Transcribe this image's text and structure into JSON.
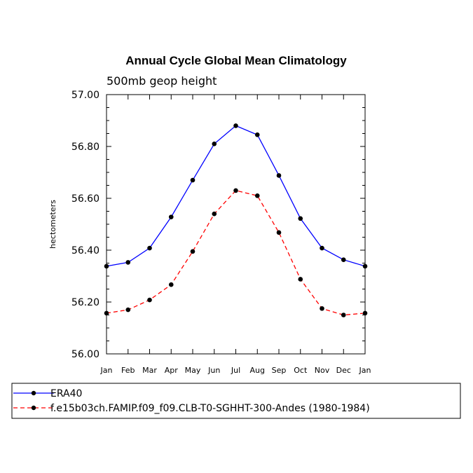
{
  "chart_data": {
    "type": "line",
    "title": "Annual Cycle Global Mean Climatology",
    "subtitle": "500mb geop height",
    "xlabel": "",
    "ylabel": "hectometers",
    "categories": [
      "Jan",
      "Feb",
      "Mar",
      "Apr",
      "May",
      "Jun",
      "Jul",
      "Aug",
      "Sep",
      "Oct",
      "Nov",
      "Dec",
      "Jan"
    ],
    "ylim": [
      56.0,
      57.0
    ],
    "yticks": [
      56.0,
      56.2,
      56.4,
      56.6,
      56.8,
      57.0
    ],
    "ytick_labels": [
      "56.00",
      "56.20",
      "56.40",
      "56.60",
      "56.80",
      "57.00"
    ],
    "series": [
      {
        "name": "ERA40",
        "color": "#0000ff",
        "dash": "solid",
        "values": [
          56.338,
          56.353,
          56.408,
          56.528,
          56.67,
          56.81,
          56.88,
          56.845,
          56.688,
          56.522,
          56.408,
          56.363,
          56.338
        ]
      },
      {
        "name": "f.e15b03ch.FAMIP.f09_f09.CLB-T0-SGHHT-300-Andes (1980-1984)",
        "color": "#ff0000",
        "dash": "dashed",
        "values": [
          56.157,
          56.17,
          56.208,
          56.267,
          56.395,
          56.54,
          56.63,
          56.61,
          56.468,
          56.288,
          56.175,
          56.15,
          56.157
        ]
      }
    ]
  }
}
